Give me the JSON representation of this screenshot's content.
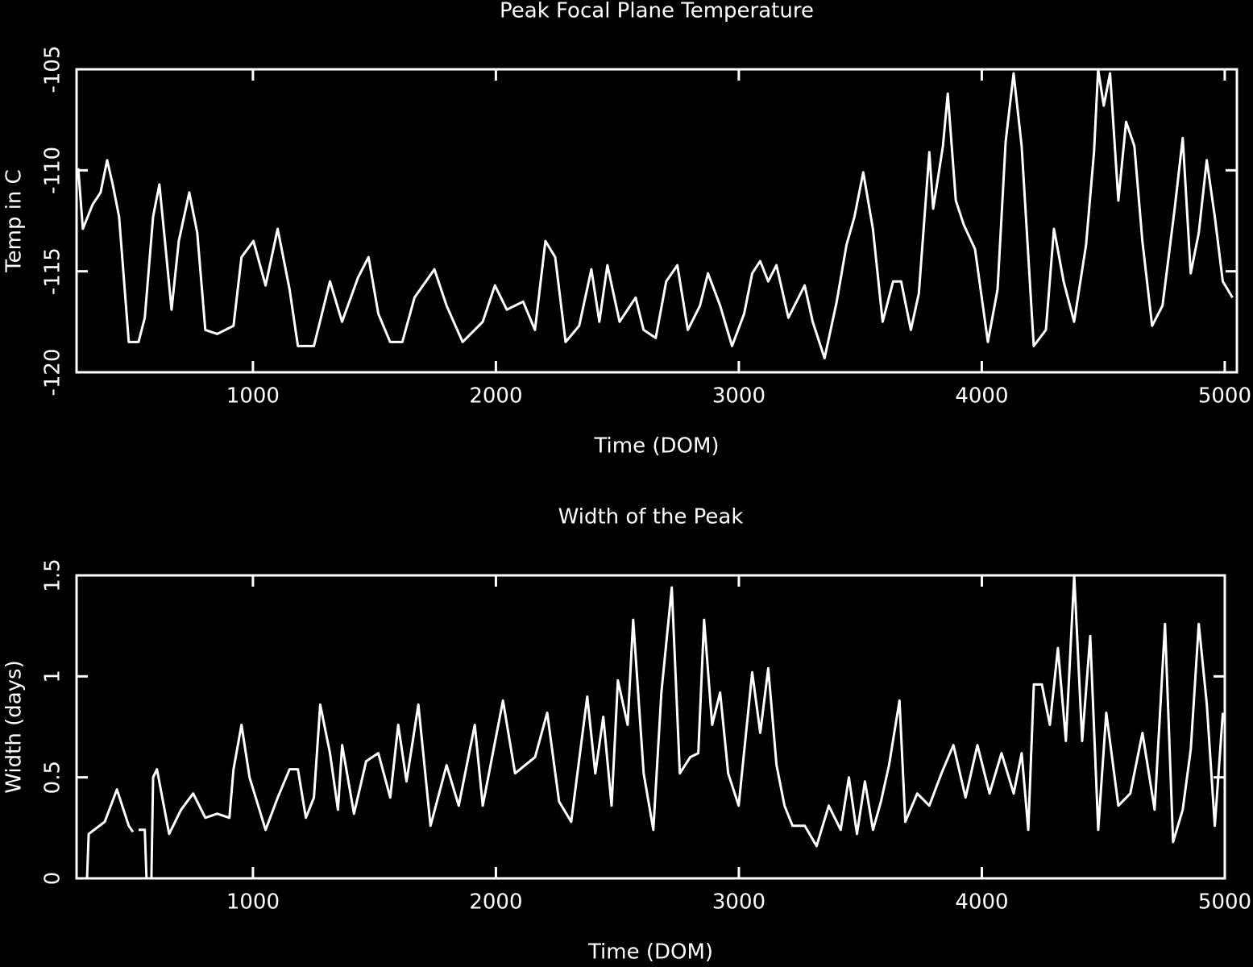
{
  "chart_data": [
    {
      "type": "line",
      "title": "Peak Focal Plane Temperature",
      "xlabel": "Time (DOM)",
      "ylabel": "Temp in C",
      "xlim": [
        274,
        5050
      ],
      "ylim": [
        -120,
        -105
      ],
      "xticks": [
        1000,
        2000,
        3000,
        4000,
        5000
      ],
      "yticks": [
        -120,
        -115,
        -110,
        -105
      ],
      "color": "#ffffff",
      "x": [
        281,
        300,
        340,
        373,
        400,
        423,
        449,
        489,
        529,
        555,
        589,
        615,
        638,
        665,
        695,
        738,
        771,
        804,
        853,
        920,
        953,
        1002,
        1052,
        1102,
        1151,
        1185,
        1251,
        1317,
        1367,
        1433,
        1476,
        1516,
        1565,
        1615,
        1665,
        1747,
        1797,
        1863,
        1946,
        1996,
        2045,
        2112,
        2161,
        2204,
        2244,
        2287,
        2343,
        2393,
        2426,
        2459,
        2509,
        2575,
        2608,
        2658,
        2701,
        2747,
        2790,
        2840,
        2873,
        2923,
        2972,
        3022,
        3055,
        3088,
        3121,
        3155,
        3204,
        3271,
        3304,
        3353,
        3403,
        3443,
        3476,
        3512,
        3552,
        3592,
        3635,
        3668,
        3708,
        3741,
        3784,
        3800,
        3840,
        3860,
        3893,
        3926,
        3972,
        4025,
        4065,
        4098,
        4131,
        4164,
        4214,
        4264,
        4297,
        4337,
        4380,
        4429,
        4462,
        4479,
        4502,
        4528,
        4562,
        4594,
        4628,
        4661,
        4701,
        4744,
        4794,
        4827,
        4860,
        4893,
        4926,
        4959,
        4992,
        5032
      ],
      "values": [
        -109.9,
        -112.9,
        -111.7,
        -111.1,
        -109.5,
        -110.7,
        -112.3,
        -118.5,
        -118.5,
        -117.3,
        -112.3,
        -110.7,
        -113.5,
        -116.9,
        -113.5,
        -111.1,
        -113.1,
        -117.9,
        -118.1,
        -117.7,
        -114.3,
        -113.5,
        -115.7,
        -112.9,
        -115.9,
        -118.7,
        -118.7,
        -115.5,
        -117.5,
        -115.3,
        -114.3,
        -117.1,
        -118.5,
        -118.5,
        -116.3,
        -114.9,
        -116.7,
        -118.5,
        -117.5,
        -115.7,
        -116.9,
        -116.5,
        -117.9,
        -113.5,
        -114.3,
        -118.5,
        -117.7,
        -114.9,
        -117.5,
        -114.7,
        -117.5,
        -116.3,
        -117.9,
        -118.3,
        -115.5,
        -114.7,
        -117.9,
        -116.7,
        -115.1,
        -116.7,
        -118.7,
        -117.1,
        -115.1,
        -114.5,
        -115.5,
        -114.7,
        -117.3,
        -115.7,
        -117.5,
        -119.3,
        -116.5,
        -113.7,
        -112.3,
        -110.1,
        -112.9,
        -117.5,
        -115.5,
        -115.5,
        -117.9,
        -116.1,
        -109.1,
        -111.9,
        -108.8,
        -106.2,
        -111.5,
        -112.7,
        -113.9,
        -118.5,
        -115.9,
        -108.6,
        -105.2,
        -108.8,
        -118.7,
        -117.9,
        -112.9,
        -115.5,
        -117.5,
        -113.7,
        -109.1,
        -105,
        -106.8,
        -105.2,
        -111.5,
        -107.6,
        -108.8,
        -113.5,
        -117.7,
        -116.7,
        -111.9,
        -108.4,
        -115.1,
        -113.1,
        -109.5,
        -112.3,
        -115.5,
        -116.3
      ]
    },
    {
      "type": "line",
      "title": "Width of the Peak",
      "xlabel": "Time (DOM)",
      "ylabel": "Width (days)",
      "xlim": [
        274,
        5000
      ],
      "ylim": [
        0,
        1.5
      ],
      "xticks": [
        1000,
        2000,
        3000,
        4000,
        5000
      ],
      "yticks": [
        0,
        0.5,
        1,
        1.5
      ],
      "color": "#ffffff",
      "x": [
        317,
        324,
        390,
        440,
        489,
        506,
        516,
        529,
        555,
        562,
        582,
        589,
        605,
        655,
        704,
        754,
        804,
        853,
        903,
        920,
        953,
        986,
        1052,
        1102,
        1151,
        1185,
        1218,
        1251,
        1277,
        1317,
        1350,
        1367,
        1416,
        1466,
        1516,
        1565,
        1598,
        1632,
        1681,
        1731,
        1797,
        1847,
        1913,
        1946,
        2029,
        2079,
        2161,
        2211,
        2260,
        2310,
        2376,
        2409,
        2442,
        2476,
        2502,
        2542,
        2565,
        2608,
        2648,
        2681,
        2724,
        2757,
        2800,
        2833,
        2857,
        2890,
        2923,
        2956,
        2999,
        3055,
        3088,
        3121,
        3155,
        3188,
        3221,
        3271,
        3320,
        3370,
        3419,
        3453,
        3486,
        3519,
        3552,
        3585,
        3618,
        3661,
        3685,
        3734,
        3784,
        3834,
        3883,
        3933,
        3982,
        4032,
        4081,
        4131,
        4164,
        4191,
        4214,
        4247,
        4280,
        4313,
        4346,
        4380,
        4413,
        4446,
        4479,
        4512,
        4562,
        4611,
        4661,
        4711,
        4754,
        4787,
        4827,
        4860,
        4893,
        4926,
        4959,
        4992
      ],
      "values": [
        0,
        0.22,
        0.28,
        0.44,
        0.26,
        0.23,
        null,
        0.24,
        0.24,
        0,
        0,
        0.5,
        0.54,
        0.22,
        0.34,
        0.42,
        0.3,
        0.32,
        0.3,
        0.54,
        0.76,
        0.5,
        0.24,
        0.4,
        0.54,
        0.54,
        0.3,
        0.4,
        0.86,
        0.62,
        0.34,
        0.66,
        0.32,
        0.58,
        0.62,
        0.4,
        0.76,
        0.48,
        0.86,
        0.26,
        0.56,
        0.36,
        0.76,
        0.36,
        0.88,
        0.52,
        0.6,
        0.82,
        0.38,
        0.28,
        0.9,
        0.52,
        0.8,
        0.36,
        0.98,
        0.76,
        1.28,
        0.52,
        0.24,
        0.92,
        1.44,
        0.52,
        0.6,
        0.62,
        1.28,
        0.76,
        0.92,
        0.52,
        0.36,
        1.02,
        0.72,
        1.04,
        0.56,
        0.36,
        0.26,
        0.26,
        0.16,
        0.36,
        0.24,
        0.5,
        0.22,
        0.48,
        0.24,
        0.38,
        0.56,
        0.88,
        0.28,
        0.42,
        0.36,
        0.52,
        0.66,
        0.4,
        0.66,
        0.42,
        0.62,
        0.42,
        0.62,
        0.24,
        0.96,
        0.96,
        0.76,
        1.14,
        0.68,
        1.5,
        0.68,
        1.2,
        0.24,
        0.82,
        0.36,
        0.42,
        0.72,
        0.34,
        1.26,
        0.18,
        0.34,
        0.64,
        1.26,
        0.86,
        0.26,
        0.82
      ]
    }
  ]
}
